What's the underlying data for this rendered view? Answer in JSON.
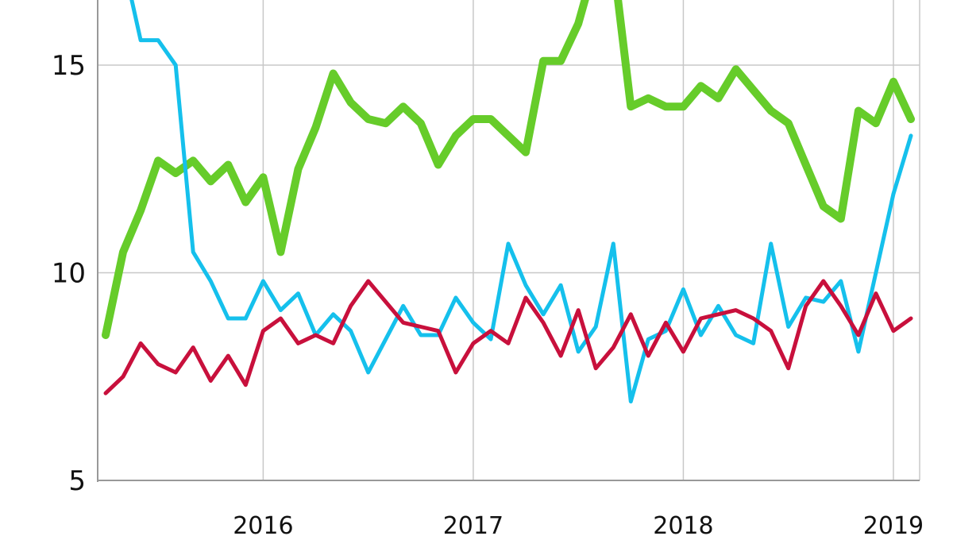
{
  "chart_data": {
    "type": "line",
    "title": "",
    "xlabel": "",
    "ylabel": "",
    "ylim": [
      5,
      16.5
    ],
    "xlim": [
      "2015-04",
      "2019-02"
    ],
    "yticks": [
      5,
      10,
      15
    ],
    "xticks": [
      {
        "label": "2016",
        "x": "2016-01"
      },
      {
        "label": "2017",
        "x": "2017-01"
      },
      {
        "label": "2018",
        "x": "2018-01"
      },
      {
        "label": "2019",
        "x": "2019-01"
      }
    ],
    "grid": true,
    "x": [
      "2015-04",
      "2015-05",
      "2015-06",
      "2015-07",
      "2015-08",
      "2015-09",
      "2015-10",
      "2015-11",
      "2015-12",
      "2016-01",
      "2016-02",
      "2016-03",
      "2016-04",
      "2016-05",
      "2016-06",
      "2016-07",
      "2016-08",
      "2016-09",
      "2016-10",
      "2016-11",
      "2016-12",
      "2017-01",
      "2017-02",
      "2017-03",
      "2017-04",
      "2017-05",
      "2017-06",
      "2017-07",
      "2017-08",
      "2017-09",
      "2017-10",
      "2017-11",
      "2017-12",
      "2018-01",
      "2018-02",
      "2018-03",
      "2018-04",
      "2018-05",
      "2018-06",
      "2018-07",
      "2018-08",
      "2018-09",
      "2018-10",
      "2018-11",
      "2018-12",
      "2019-01",
      "2019-02"
    ],
    "series": [
      {
        "color": "#66cc2a",
        "width": 10,
        "values": [
          8.5,
          10.5,
          11.5,
          12.7,
          12.4,
          12.7,
          12.2,
          12.6,
          11.7,
          12.3,
          10.5,
          12.5,
          13.5,
          14.8,
          14.1,
          13.7,
          13.6,
          14.0,
          13.6,
          12.6,
          13.3,
          13.7,
          13.7,
          13.3,
          12.9,
          15.1,
          15.1,
          16.0,
          17.5,
          17.5,
          14.0,
          14.2,
          14.0,
          14.0,
          14.5,
          14.2,
          14.9,
          14.4,
          13.9,
          13.6,
          12.6,
          11.6,
          11.3,
          13.9,
          13.6,
          14.6,
          13.7
        ]
      },
      {
        "color": "#15c0ec",
        "width": 5,
        "values": [
          17.5,
          17.5,
          15.6,
          15.6,
          15.0,
          10.5,
          9.8,
          8.9,
          8.9,
          9.8,
          9.1,
          9.5,
          8.5,
          9.0,
          8.6,
          7.6,
          8.4,
          9.2,
          8.5,
          8.5,
          9.4,
          8.8,
          8.4,
          10.7,
          9.7,
          9.0,
          9.7,
          8.1,
          8.7,
          10.7,
          6.9,
          8.4,
          8.6,
          9.6,
          8.5,
          9.2,
          8.5,
          8.3,
          10.7,
          8.7,
          9.4,
          9.3,
          9.8,
          8.1,
          10.0,
          11.9,
          13.3
        ]
      },
      {
        "color": "#c8103c",
        "width": 5,
        "values": [
          7.1,
          7.5,
          8.3,
          7.8,
          7.6,
          8.2,
          7.4,
          8.0,
          7.3,
          8.6,
          8.9,
          8.3,
          8.5,
          8.3,
          9.2,
          9.8,
          9.3,
          8.8,
          8.7,
          8.6,
          7.6,
          8.3,
          8.6,
          8.3,
          9.4,
          8.8,
          8.0,
          9.1,
          7.7,
          8.2,
          9.0,
          8.0,
          8.8,
          8.1,
          8.9,
          9.0,
          9.1,
          8.9,
          8.6,
          7.7,
          9.2,
          9.8,
          9.2,
          8.5,
          9.5,
          8.6,
          8.9
        ]
      }
    ]
  }
}
